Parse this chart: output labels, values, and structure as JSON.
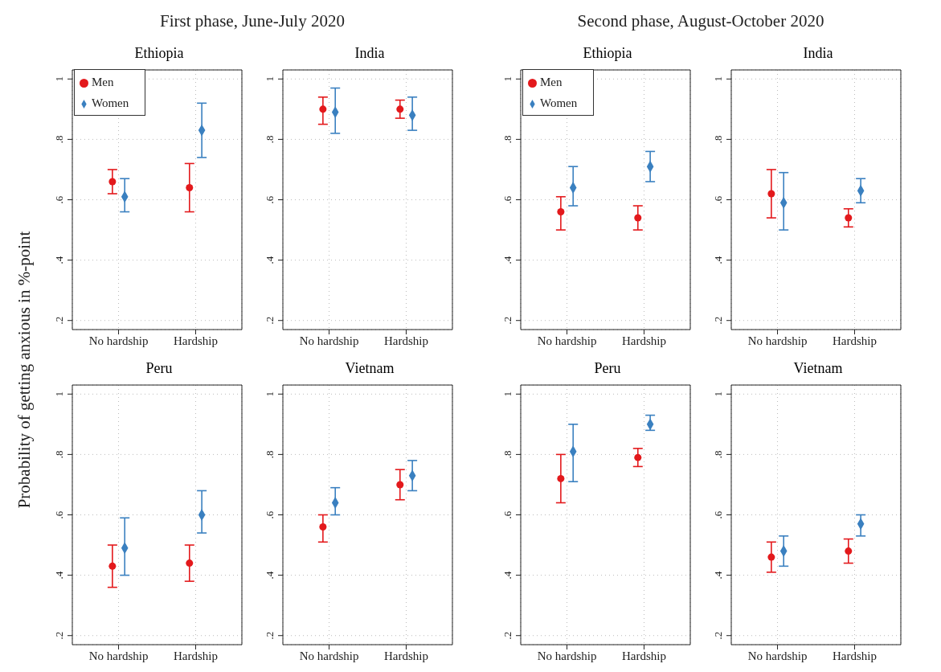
{
  "chart_data": [
    {
      "type": "scatter",
      "title": "Ethiopia",
      "annotations": [
        "First phase, June-July 2020"
      ],
      "ylabel": "Probability of getting anxious in %-point",
      "categories": [
        "No hardship",
        "Hardship"
      ],
      "legend": "top left",
      "grid": true,
      "line_style": "dotted",
      "ylim": [
        0.17,
        1.03
      ],
      "yticks": [
        {
          "value": 0.2,
          "label": ".2"
        },
        {
          "value": 0.4,
          "label": ".4"
        },
        {
          "value": 0.6,
          "label": ".6"
        },
        {
          "value": 0.8,
          "label": ".8"
        },
        {
          "value": 1,
          "label": "1"
        }
      ],
      "series": [
        {
          "name": "Men",
          "color": "#e3191c",
          "marker": "circle",
          "values": [
            0.66,
            0.64
          ],
          "errors": [
            [
              0.62,
              0.7
            ],
            [
              0.56,
              0.72
            ]
          ]
        },
        {
          "name": "Women",
          "color": "#3a80c0",
          "marker": "diamond",
          "values": [
            0.61,
            0.83
          ],
          "errors": [
            [
              0.56,
              0.67
            ],
            [
              0.74,
              0.92
            ]
          ]
        }
      ]
    },
    {
      "type": "scatter",
      "title": "India",
      "categories": [
        "No hardship",
        "Hardship"
      ],
      "grid": true,
      "line_style": "dotted",
      "ylim": [
        0.17,
        1.03
      ],
      "yticks": [
        {
          "value": 0.2,
          "label": ".2"
        },
        {
          "value": 0.4,
          "label": ".4"
        },
        {
          "value": 0.6,
          "label": ".6"
        },
        {
          "value": 0.8,
          "label": ".8"
        },
        {
          "value": 1,
          "label": "1"
        }
      ],
      "series": [
        {
          "color": "#e3191c",
          "marker": "circle",
          "values": [
            0.9,
            0.9
          ],
          "errors": [
            [
              0.85,
              0.94
            ],
            [
              0.87,
              0.93
            ]
          ]
        },
        {
          "color": "#3a80c0",
          "marker": "diamond",
          "values": [
            0.89,
            0.88
          ],
          "errors": [
            [
              0.82,
              0.97
            ],
            [
              0.83,
              0.94
            ]
          ]
        }
      ]
    },
    {
      "type": "scatter",
      "title": "Ethiopia",
      "annotations": [
        "Second phase, August-October 2020"
      ],
      "categories": [
        "No hardship",
        "Hardship"
      ],
      "legend": "top left",
      "grid": true,
      "line_style": "dotted",
      "ylim": [
        0.17,
        1.03
      ],
      "yticks": [
        {
          "value": 0.2,
          "label": ".2"
        },
        {
          "value": 0.4,
          "label": ".4"
        },
        {
          "value": 0.6,
          "label": ".6"
        },
        {
          "value": 0.8,
          "label": ".8"
        },
        {
          "value": 1,
          "label": "1"
        }
      ],
      "series": [
        {
          "name": "Men",
          "color": "#e3191c",
          "marker": "circle",
          "values": [
            0.56,
            0.54
          ],
          "errors": [
            [
              0.5,
              0.61
            ],
            [
              0.5,
              0.58
            ]
          ]
        },
        {
          "name": "Women",
          "color": "#3a80c0",
          "marker": "diamond",
          "values": [
            0.64,
            0.71
          ],
          "errors": [
            [
              0.58,
              0.71
            ],
            [
              0.66,
              0.76
            ]
          ]
        }
      ]
    },
    {
      "type": "scatter",
      "title": "India",
      "categories": [
        "No hardship",
        "Hardship"
      ],
      "grid": true,
      "line_style": "dotted",
      "ylim": [
        0.17,
        1.03
      ],
      "yticks": [
        {
          "value": 0.2,
          "label": ".2"
        },
        {
          "value": 0.4,
          "label": ".4"
        },
        {
          "value": 0.6,
          "label": ".6"
        },
        {
          "value": 0.8,
          "label": ".8"
        },
        {
          "value": 1,
          "label": "1"
        }
      ],
      "series": [
        {
          "color": "#e3191c",
          "marker": "circle",
          "values": [
            0.62,
            0.54
          ],
          "errors": [
            [
              0.54,
              0.7
            ],
            [
              0.51,
              0.57
            ]
          ]
        },
        {
          "color": "#3a80c0",
          "marker": "diamond",
          "values": [
            0.59,
            0.63
          ],
          "errors": [
            [
              0.5,
              0.69
            ],
            [
              0.59,
              0.67
            ]
          ]
        }
      ]
    },
    {
      "type": "scatter",
      "title": "Peru",
      "categories": [
        "No hardship",
        "Hardship"
      ],
      "grid": true,
      "line_style": "dotted",
      "ylim": [
        0.17,
        1.03
      ],
      "yticks": [
        {
          "value": 0.2,
          "label": ".2"
        },
        {
          "value": 0.4,
          "label": ".4"
        },
        {
          "value": 0.6,
          "label": ".6"
        },
        {
          "value": 0.8,
          "label": ".8"
        },
        {
          "value": 1,
          "label": "1"
        }
      ],
      "series": [
        {
          "color": "#e3191c",
          "marker": "circle",
          "values": [
            0.43,
            0.44
          ],
          "errors": [
            [
              0.36,
              0.5
            ],
            [
              0.38,
              0.5
            ]
          ]
        },
        {
          "color": "#3a80c0",
          "marker": "diamond",
          "values": [
            0.49,
            0.6
          ],
          "errors": [
            [
              0.4,
              0.59
            ],
            [
              0.54,
              0.68
            ]
          ]
        }
      ]
    },
    {
      "type": "scatter",
      "title": "Vietnam",
      "categories": [
        "No hardship",
        "Hardship"
      ],
      "grid": true,
      "line_style": "dotted",
      "ylim": [
        0.17,
        1.03
      ],
      "yticks": [
        {
          "value": 0.2,
          "label": ".2"
        },
        {
          "value": 0.4,
          "label": ".4"
        },
        {
          "value": 0.6,
          "label": ".6"
        },
        {
          "value": 0.8,
          "label": ".8"
        },
        {
          "value": 1,
          "label": "1"
        }
      ],
      "series": [
        {
          "color": "#e3191c",
          "marker": "circle",
          "values": [
            0.56,
            0.7
          ],
          "errors": [
            [
              0.51,
              0.6
            ],
            [
              0.65,
              0.75
            ]
          ]
        },
        {
          "color": "#3a80c0",
          "marker": "diamond",
          "values": [
            0.64,
            0.73
          ],
          "errors": [
            [
              0.6,
              0.69
            ],
            [
              0.68,
              0.78
            ]
          ]
        }
      ]
    },
    {
      "type": "scatter",
      "title": "Peru",
      "categories": [
        "No hardship",
        "Hardship"
      ],
      "grid": true,
      "line_style": "dotted",
      "ylim": [
        0.17,
        1.03
      ],
      "yticks": [
        {
          "value": 0.2,
          "label": ".2"
        },
        {
          "value": 0.4,
          "label": ".4"
        },
        {
          "value": 0.6,
          "label": ".6"
        },
        {
          "value": 0.8,
          "label": ".8"
        },
        {
          "value": 1,
          "label": "1"
        }
      ],
      "series": [
        {
          "color": "#e3191c",
          "marker": "circle",
          "values": [
            0.72,
            0.79
          ],
          "errors": [
            [
              0.64,
              0.8
            ],
            [
              0.76,
              0.82
            ]
          ]
        },
        {
          "color": "#3a80c0",
          "marker": "diamond",
          "values": [
            0.81,
            0.9
          ],
          "errors": [
            [
              0.71,
              0.9
            ],
            [
              0.88,
              0.93
            ]
          ]
        }
      ]
    },
    {
      "type": "scatter",
      "title": "Vietnam",
      "categories": [
        "No hardship",
        "Hardship"
      ],
      "grid": true,
      "line_style": "dotted",
      "ylim": [
        0.17,
        1.03
      ],
      "yticks": [
        {
          "value": 0.2,
          "label": ".2"
        },
        {
          "value": 0.4,
          "label": ".4"
        },
        {
          "value": 0.6,
          "label": ".6"
        },
        {
          "value": 0.8,
          "label": ".8"
        },
        {
          "value": 1,
          "label": "1"
        }
      ],
      "series": [
        {
          "color": "#e3191c",
          "marker": "circle",
          "values": [
            0.46,
            0.48
          ],
          "errors": [
            [
              0.41,
              0.51
            ],
            [
              0.44,
              0.52
            ]
          ]
        },
        {
          "color": "#3a80c0",
          "marker": "diamond",
          "values": [
            0.48,
            0.57
          ],
          "errors": [
            [
              0.43,
              0.53
            ],
            [
              0.53,
              0.6
            ]
          ]
        }
      ]
    }
  ]
}
